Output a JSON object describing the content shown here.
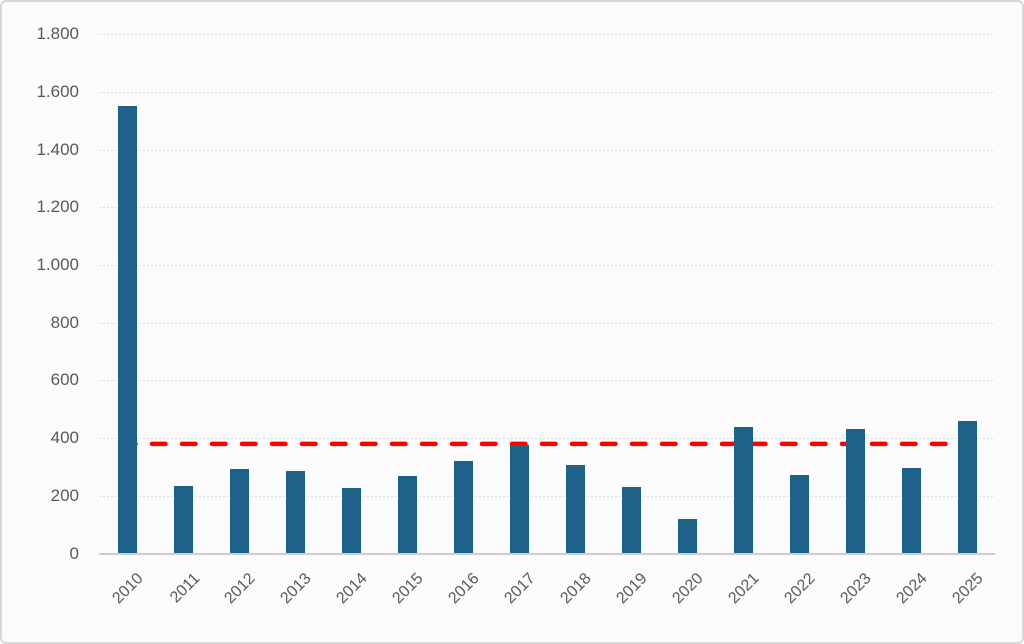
{
  "chart_data": {
    "type": "bar",
    "title": "",
    "xlabel": "",
    "ylabel": "",
    "categories": [
      "2010",
      "2011",
      "2012",
      "2013",
      "2014",
      "2015",
      "2016",
      "2017",
      "2018",
      "2019",
      "2020",
      "2021",
      "2022",
      "2023",
      "2024",
      "2025"
    ],
    "values": [
      1550,
      233,
      293,
      287,
      226,
      270,
      322,
      377,
      306,
      230,
      121,
      437,
      271,
      430,
      296,
      459
    ],
    "ylim": [
      0,
      1800
    ],
    "ytick_step": 200,
    "ytick_labels": [
      "0",
      "200",
      "400",
      "600",
      "800",
      "1.000",
      "1.200",
      "1.400",
      "1.600",
      "1.800"
    ],
    "grid": true,
    "legend": false,
    "bar_color": "#1E6287",
    "reference_line": {
      "value": 380,
      "style": "dashed",
      "color": "#FF0000"
    },
    "axis_label_color": "#595959",
    "gridline_color": "#DADADA"
  }
}
